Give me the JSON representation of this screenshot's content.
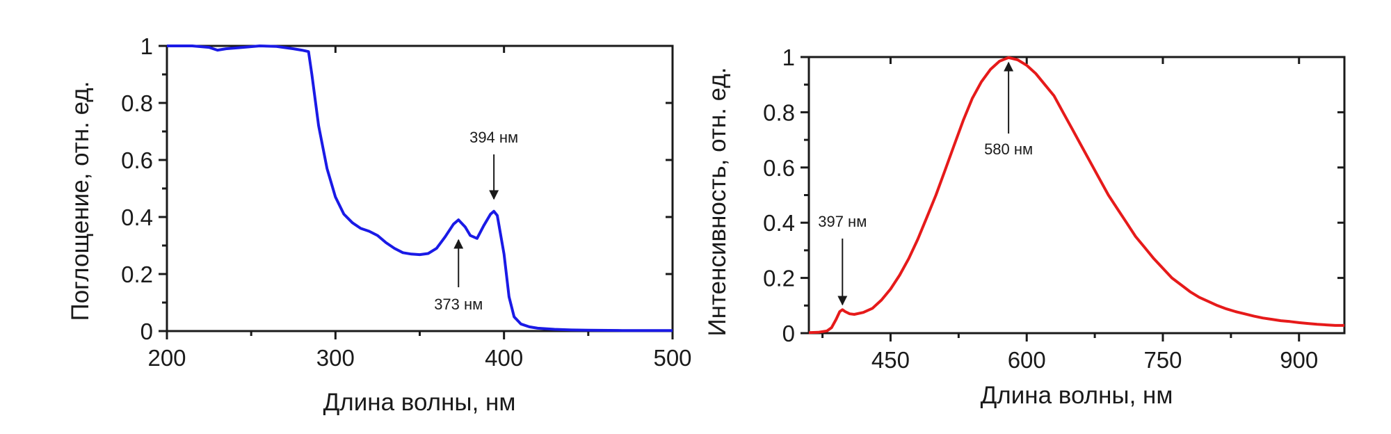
{
  "chart_data": [
    {
      "type": "line",
      "xlabel": "Длина волны, нм",
      "ylabel": "Поглощение, отн. ед.",
      "xlim": [
        200,
        500
      ],
      "ylim": [
        0,
        1
      ],
      "xticks": [
        200,
        300,
        400,
        500
      ],
      "xtick_labels": [
        "200",
        "300",
        "400",
        "500"
      ],
      "yticks": [
        0,
        0.2,
        0.4,
        0.6,
        0.8,
        1
      ],
      "ytick_labels": [
        "0",
        "0.2",
        "0.4",
        "0.6",
        "0.8",
        "1"
      ],
      "grid": false,
      "colors": {
        "line": "#1a1ae6"
      },
      "series": [
        {
          "x": [
            200,
            215,
            225,
            230,
            235,
            245,
            255,
            265,
            275,
            280,
            284,
            286,
            290,
            295,
            300,
            305,
            310,
            315,
            320,
            325,
            330,
            335,
            340,
            345,
            350,
            355,
            360,
            365,
            370,
            373,
            377,
            380,
            384,
            388,
            392,
            394,
            396,
            400,
            403,
            406,
            410,
            415,
            420,
            430,
            440,
            450,
            470,
            500
          ],
          "y": [
            1.0,
            1.0,
            0.995,
            0.985,
            0.99,
            0.995,
            1.0,
            0.998,
            0.99,
            0.985,
            0.98,
            0.9,
            0.72,
            0.57,
            0.47,
            0.41,
            0.38,
            0.36,
            0.35,
            0.335,
            0.31,
            0.29,
            0.275,
            0.27,
            0.268,
            0.272,
            0.29,
            0.33,
            0.375,
            0.39,
            0.365,
            0.335,
            0.325,
            0.37,
            0.41,
            0.42,
            0.405,
            0.27,
            0.12,
            0.05,
            0.025,
            0.015,
            0.01,
            0.006,
            0.004,
            0.003,
            0.002,
            0.002
          ]
        }
      ],
      "annotations": [
        {
          "text": "394 нм",
          "x": 394,
          "y": 0.42,
          "arrow": "down"
        },
        {
          "text": "373 нм",
          "x": 373,
          "y": 0.39,
          "arrow": "up"
        }
      ]
    },
    {
      "type": "line",
      "xlabel": "Длина волны, нм",
      "ylabel": "Интенсивность, отн. ед.",
      "xlim": [
        360,
        950
      ],
      "ylim": [
        0,
        1
      ],
      "xticks": [
        450,
        600,
        750,
        900
      ],
      "xtick_labels": [
        "450",
        "600",
        "750",
        "900"
      ],
      "yticks": [
        0,
        0.2,
        0.4,
        0.6,
        0.8,
        1
      ],
      "ytick_labels": [
        "0",
        "0.2",
        "0.4",
        "0.6",
        "0.8",
        "1"
      ],
      "grid": false,
      "colors": {
        "line": "#e61a1a"
      },
      "series": [
        {
          "x": [
            360,
            370,
            380,
            385,
            390,
            394,
            397,
            400,
            405,
            410,
            420,
            430,
            440,
            450,
            460,
            470,
            480,
            490,
            500,
            510,
            520,
            530,
            540,
            550,
            560,
            570,
            580,
            590,
            600,
            610,
            620,
            630,
            640,
            650,
            660,
            670,
            680,
            690,
            700,
            710,
            720,
            730,
            740,
            750,
            760,
            770,
            780,
            790,
            800,
            810,
            820,
            830,
            840,
            850,
            860,
            870,
            880,
            890,
            900,
            910,
            920,
            930,
            940,
            950
          ],
          "y": [
            0.002,
            0.003,
            0.008,
            0.02,
            0.05,
            0.078,
            0.085,
            0.078,
            0.07,
            0.068,
            0.075,
            0.09,
            0.12,
            0.16,
            0.21,
            0.27,
            0.34,
            0.42,
            0.5,
            0.59,
            0.68,
            0.77,
            0.85,
            0.91,
            0.955,
            0.985,
            0.998,
            0.99,
            0.97,
            0.94,
            0.9,
            0.86,
            0.8,
            0.74,
            0.68,
            0.62,
            0.56,
            0.5,
            0.45,
            0.4,
            0.35,
            0.31,
            0.27,
            0.235,
            0.2,
            0.175,
            0.15,
            0.13,
            0.115,
            0.1,
            0.088,
            0.078,
            0.07,
            0.062,
            0.055,
            0.05,
            0.045,
            0.042,
            0.038,
            0.035,
            0.032,
            0.03,
            0.028,
            0.028
          ]
        }
      ],
      "annotations": [
        {
          "text": "580 нм",
          "x": 580,
          "y": 0.998,
          "arrow": "up"
        },
        {
          "text": "397 нм",
          "x": 397,
          "y": 0.085,
          "arrow": "down"
        }
      ]
    }
  ]
}
